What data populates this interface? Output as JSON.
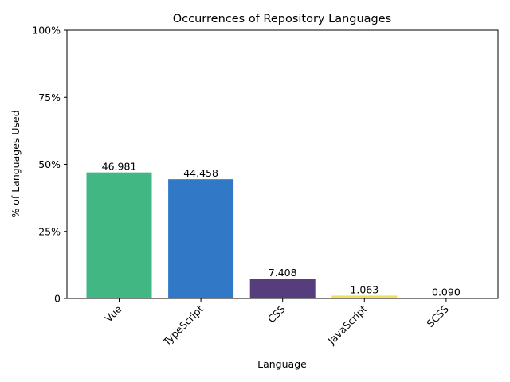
{
  "chart_data": {
    "type": "bar",
    "title": "Occurrences of Repository Languages",
    "xlabel": "Language",
    "ylabel": "% of Languages Used",
    "categories": [
      "Vue",
      "TypeScript",
      "CSS",
      "JavaScript",
      "SCSS"
    ],
    "values": [
      46.981,
      44.458,
      7.408,
      1.063,
      0.09
    ],
    "value_labels": [
      "46.981",
      "44.458",
      "7.408",
      "1.063",
      "0.090"
    ],
    "colors": [
      "#41b883",
      "#3178c6",
      "#563d7c",
      "#f1e05a",
      "#c6538c"
    ],
    "ylim": [
      0,
      100
    ],
    "yticks": [
      0,
      25,
      50,
      75,
      100
    ],
    "ytick_labels": [
      "0",
      "25%",
      "50%",
      "75%",
      "100%"
    ],
    "grid": false,
    "legend": "none"
  }
}
